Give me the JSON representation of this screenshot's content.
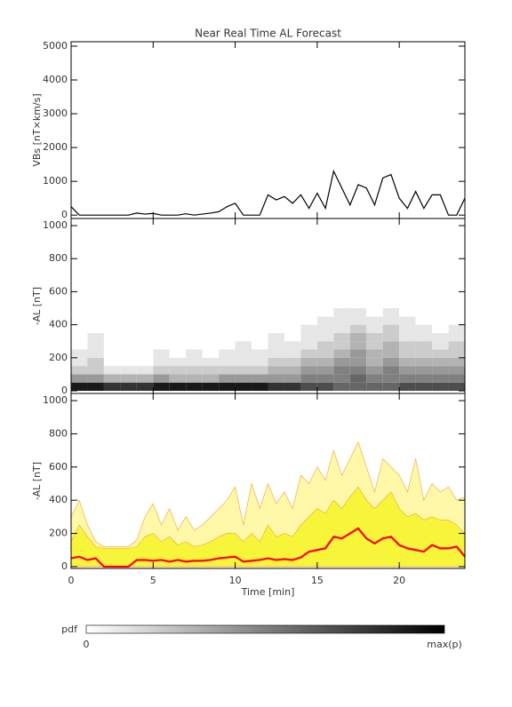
{
  "chart_data": [
    {
      "type": "line",
      "title": "Near Real Time AL Forecast",
      "ylabel": "VBs [nT×km/s]",
      "x": [
        0,
        0.5,
        1,
        1.5,
        2,
        2.5,
        3,
        3.5,
        4,
        4.5,
        5,
        5.5,
        6,
        6.5,
        7,
        7.5,
        8,
        8.5,
        9,
        9.5,
        10,
        10.5,
        11,
        11.5,
        12,
        12.5,
        13,
        13.5,
        14,
        14.5,
        15,
        15.5,
        16,
        16.5,
        17,
        17.5,
        18,
        18.5,
        19,
        19.5,
        20,
        20.5,
        21,
        21.5,
        22,
        22.5,
        23,
        23.5,
        24
      ],
      "series": [
        {
          "color": "#000000",
          "values": [
            250,
            0,
            0,
            0,
            0,
            0,
            0,
            0,
            60,
            30,
            50,
            0,
            0,
            0,
            40,
            0,
            30,
            60,
            100,
            250,
            350,
            0,
            0,
            0,
            600,
            450,
            550,
            350,
            600,
            200,
            650,
            200,
            1300,
            800,
            300,
            900,
            800,
            300,
            1100,
            1200,
            500,
            200,
            700,
            200,
            600,
            600,
            0,
            0,
            500
          ]
        }
      ],
      "xlim": [
        0,
        24
      ],
      "xticks": [
        0,
        5,
        10,
        15,
        20
      ],
      "ylim": [
        -100,
        5130
      ],
      "yticks": [
        0,
        1000,
        2000,
        3000,
        4000,
        5000
      ]
    },
    {
      "type": "heatmap",
      "ylabel": "-AL [nT]",
      "xbins": [
        0,
        1,
        2,
        3,
        4,
        5,
        6,
        7,
        8,
        9,
        10,
        11,
        12,
        13,
        14,
        15,
        16,
        17,
        18,
        19,
        20,
        21,
        22,
        23,
        24
      ],
      "ybins": [
        0,
        50,
        100,
        150,
        200,
        250,
        300,
        350,
        400,
        450,
        500
      ],
      "z": [
        [
          0.9,
          0.9,
          0.8,
          0.8,
          0.8,
          0.9,
          0.9,
          0.9,
          0.9,
          0.9,
          0.9,
          0.9,
          0.8,
          0.8,
          0.7,
          0.7,
          0.6,
          0.6,
          0.6,
          0.6,
          0.7,
          0.7,
          0.7,
          0.7
        ],
        [
          0.4,
          0.4,
          0.3,
          0.3,
          0.3,
          0.4,
          0.3,
          0.3,
          0.3,
          0.4,
          0.4,
          0.4,
          0.4,
          0.4,
          0.5,
          0.5,
          0.5,
          0.6,
          0.5,
          0.5,
          0.5,
          0.5,
          0.5,
          0.5
        ],
        [
          0.2,
          0.2,
          0.1,
          0.1,
          0.1,
          0.2,
          0.2,
          0.2,
          0.2,
          0.2,
          0.2,
          0.2,
          0.3,
          0.3,
          0.4,
          0.4,
          0.5,
          0.5,
          0.4,
          0.5,
          0.4,
          0.4,
          0.4,
          0.4
        ],
        [
          0.1,
          0.2,
          0,
          0,
          0,
          0.1,
          0.1,
          0.1,
          0.1,
          0.1,
          0.1,
          0.1,
          0.2,
          0.2,
          0.3,
          0.3,
          0.4,
          0.4,
          0.3,
          0.4,
          0.3,
          0.3,
          0.3,
          0.3
        ],
        [
          0.1,
          0.1,
          0,
          0,
          0,
          0.1,
          0,
          0.1,
          0,
          0.1,
          0.1,
          0.1,
          0.1,
          0.1,
          0.2,
          0.2,
          0.3,
          0.4,
          0.3,
          0.3,
          0.2,
          0.2,
          0.2,
          0.2
        ],
        [
          0,
          0.1,
          0,
          0,
          0,
          0,
          0,
          0,
          0,
          0,
          0.1,
          0,
          0.1,
          0.1,
          0.1,
          0.2,
          0.2,
          0.3,
          0.2,
          0.3,
          0.2,
          0.2,
          0.1,
          0.2
        ],
        [
          0,
          0.1,
          0,
          0,
          0,
          0,
          0,
          0,
          0,
          0,
          0,
          0,
          0.1,
          0,
          0.1,
          0.1,
          0.2,
          0.3,
          0.2,
          0.2,
          0.1,
          0.1,
          0.1,
          0.1
        ],
        [
          0,
          0,
          0,
          0,
          0,
          0,
          0,
          0,
          0,
          0,
          0,
          0,
          0,
          0,
          0.1,
          0.1,
          0.1,
          0.2,
          0.1,
          0.2,
          0.1,
          0.1,
          0,
          0.1
        ],
        [
          0,
          0,
          0,
          0,
          0,
          0,
          0,
          0,
          0,
          0,
          0,
          0,
          0,
          0,
          0,
          0.1,
          0.1,
          0.1,
          0.1,
          0.1,
          0.1,
          0,
          0,
          0
        ],
        [
          0,
          0,
          0,
          0,
          0,
          0,
          0,
          0,
          0,
          0,
          0,
          0,
          0,
          0,
          0,
          0,
          0.1,
          0.1,
          0,
          0.1,
          0,
          0,
          0,
          0
        ]
      ],
      "colorbar": {
        "label": "pdf",
        "min_label": "0",
        "max_label": "max(p)"
      },
      "xlim": [
        0,
        24
      ],
      "xticks": [
        0,
        5,
        10,
        15,
        20
      ],
      "ylim": [
        -16,
        1043
      ],
      "yticks": [
        0,
        200,
        400,
        600,
        800,
        1000
      ]
    },
    {
      "type": "area",
      "ylabel": "-AL [nT]",
      "xlabel": "Time [min]",
      "x": [
        0,
        0.5,
        1,
        1.5,
        2,
        2.5,
        3,
        3.5,
        4,
        4.5,
        5,
        5.5,
        6,
        6.5,
        7,
        7.5,
        8,
        8.5,
        9,
        9.5,
        10,
        10.5,
        11,
        11.5,
        12,
        12.5,
        13,
        13.5,
        14,
        14.5,
        15,
        15.5,
        16,
        16.5,
        17,
        17.5,
        18,
        18.5,
        19,
        19.5,
        20,
        20.5,
        21,
        21.5,
        22,
        22.5,
        23,
        23.5,
        24
      ],
      "series": [
        {
          "color": "#fff8a8",
          "values": [
            300,
            400,
            250,
            150,
            120,
            120,
            120,
            120,
            160,
            300,
            380,
            250,
            350,
            220,
            300,
            220,
            250,
            300,
            350,
            400,
            480,
            250,
            500,
            350,
            500,
            380,
            450,
            350,
            550,
            500,
            600,
            520,
            700,
            550,
            650,
            750,
            600,
            450,
            650,
            600,
            550,
            450,
            650,
            400,
            500,
            450,
            480,
            400,
            420
          ]
        },
        {
          "color": "#f7f53a",
          "values": [
            150,
            250,
            180,
            120,
            110,
            110,
            110,
            110,
            120,
            180,
            200,
            150,
            180,
            130,
            150,
            120,
            130,
            150,
            180,
            200,
            200,
            150,
            200,
            150,
            250,
            180,
            200,
            180,
            250,
            300,
            350,
            320,
            400,
            350,
            420,
            480,
            400,
            350,
            400,
            450,
            350,
            300,
            320,
            280,
            300,
            280,
            280,
            250,
            200
          ]
        },
        {
          "color": "#ff0000",
          "values": [
            50,
            60,
            40,
            50,
            0,
            0,
            0,
            0,
            40,
            40,
            35,
            40,
            30,
            40,
            30,
            35,
            35,
            40,
            50,
            55,
            60,
            30,
            35,
            40,
            50,
            40,
            45,
            40,
            55,
            90,
            100,
            110,
            180,
            170,
            200,
            230,
            170,
            140,
            170,
            180,
            130,
            110,
            100,
            90,
            130,
            110,
            110,
            120,
            60
          ]
        }
      ],
      "xlim": [
        0,
        24
      ],
      "xticks": [
        0,
        5,
        10,
        15,
        20
      ],
      "ylim": [
        -11,
        1043
      ],
      "yticks": [
        0,
        200,
        400,
        600,
        800,
        1000
      ]
    }
  ]
}
